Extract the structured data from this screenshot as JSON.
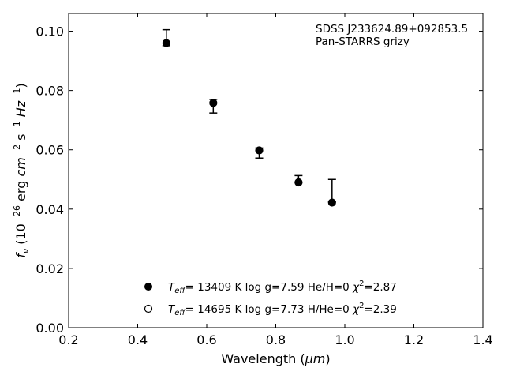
{
  "chart_data": {
    "type": "scatter",
    "title": "",
    "xlabel": {
      "main": "Wavelength (",
      "unit": "μm",
      "close": ")"
    },
    "ylabel": {
      "f": "f",
      "nu": "ν",
      "open": " (10",
      "exp_a": "−26",
      "erg": " erg ",
      "cm": "cm",
      "exp_b": "−2",
      "s": " s",
      "exp_c": "−1",
      "hz": " Hz",
      "exp_d": "−1",
      "close": ")"
    },
    "xlim": [
      0.2,
      1.4
    ],
    "ylim": [
      0.0,
      0.106
    ],
    "xticks": [
      0.2,
      0.4,
      0.6,
      0.8,
      1.0,
      1.2,
      1.4
    ],
    "xtick_labels": [
      "0.2",
      "0.4",
      "0.6",
      "0.8",
      "1.0",
      "1.2",
      "1.4"
    ],
    "yticks": [
      0.0,
      0.02,
      0.04,
      0.06,
      0.08,
      0.1
    ],
    "ytick_labels": [
      "0.00",
      "0.02",
      "0.04",
      "0.06",
      "0.08",
      "0.10"
    ],
    "grid": false,
    "annotation": [
      "SDSS J233624.89+092853.5",
      "Pan-STARRS grizy"
    ],
    "observed": {
      "x": [
        0.483,
        0.619,
        0.752,
        0.866,
        0.963
      ],
      "y": [
        0.0963,
        0.0762,
        0.06,
        0.0495,
        0.0425
      ],
      "yerr_low": [
        0.0951,
        0.0724,
        0.0572,
        0.049,
        0.0425
      ],
      "yerr_high": [
        0.1005,
        0.077,
        0.0606,
        0.0513,
        0.05
      ]
    },
    "series": [
      {
        "marker": "filled",
        "x": [
          0.483,
          0.619,
          0.752,
          0.866,
          0.963
        ],
        "y": [
          0.096,
          0.0758,
          0.0598,
          0.049,
          0.0422
        ],
        "label": {
          "t": "T",
          "sub": "eff",
          "text": "= 13409 K  log g=7.59  He/H=0  ",
          "chi": "χ",
          "sup": "2",
          "val": "=2.87"
        }
      },
      {
        "marker": "open",
        "x": [
          0.483,
          0.619,
          0.752,
          0.866,
          0.963
        ],
        "y": [
          0.0961,
          0.0759,
          0.0599,
          0.0491,
          0.0423
        ],
        "label": {
          "t": "T",
          "sub": "eff",
          "text": "= 14695 K  log g=7.73  H/He=0  ",
          "chi": "χ",
          "sup": "2",
          "val": "=2.39"
        }
      }
    ],
    "legend_position": "lower-center",
    "colors": {
      "marker": "#000000",
      "axes": "#000000"
    }
  }
}
